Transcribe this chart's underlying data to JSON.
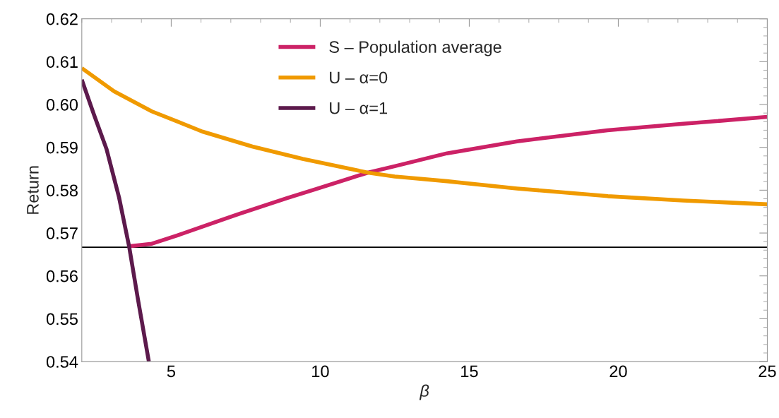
{
  "chart_data": {
    "type": "line",
    "xlabel": "β",
    "ylabel": "Return",
    "xlim": [
      2,
      25
    ],
    "xticks": [
      5,
      10,
      15,
      20,
      25
    ],
    "ylim": [
      0.54,
      0.62
    ],
    "yticks": [
      0.54,
      0.55,
      0.56,
      0.57,
      0.58,
      0.59,
      {
        "value": 0.6,
        "label": "0.60"
      },
      0.61,
      0.62
    ],
    "grid": false,
    "legend": "top",
    "line_style": "solid",
    "marker": "none",
    "ref_lines": [
      {
        "axis": "y",
        "value": 0.5667,
        "color": "#000000"
      }
    ],
    "series": [
      {
        "name": "S – Population average",
        "color": "#cc2266",
        "x": [
          3.59,
          4.35,
          5.19,
          6.87,
          7.3,
          8.9,
          9.83,
          11.6,
          12.5,
          14.25,
          16.6,
          19.64,
          22.18,
          25
        ],
        "values": [
          0.5669,
          0.5675,
          0.5694,
          0.5735,
          0.5745,
          0.5782,
          0.5802,
          0.5841,
          0.5856,
          0.5886,
          0.5914,
          0.594,
          0.5955,
          0.5971
        ]
      },
      {
        "name": "U – α=0",
        "color": "#f09a00",
        "x": [
          2,
          3.08,
          4.35,
          6.04,
          7.72,
          9.41,
          11.6,
          12.5,
          14.25,
          16.6,
          19.65,
          22.18,
          25
        ],
        "values": [
          0.6085,
          0.6031,
          0.5984,
          0.5937,
          0.5902,
          0.5873,
          0.5841,
          0.5832,
          0.5821,
          0.5804,
          0.5786,
          0.5776,
          0.5767
        ]
      },
      {
        "name": "U – α=1",
        "color": "#5c1a4c",
        "x": [
          2,
          2.4,
          2.83,
          3.25,
          3.59,
          3.88,
          4.25
        ],
        "values": [
          0.6058,
          0.5978,
          0.5896,
          0.5783,
          0.5668,
          0.5547,
          0.54
        ]
      }
    ]
  }
}
